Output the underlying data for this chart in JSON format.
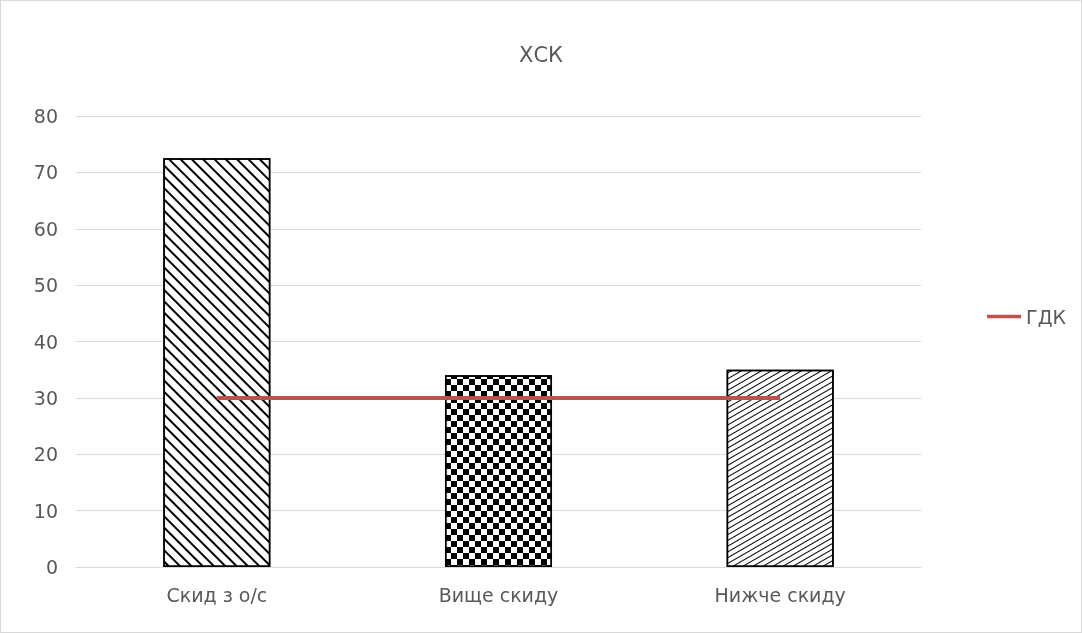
{
  "chart_data": {
    "type": "bar",
    "title": "ХСК",
    "categories": [
      "Скид з о/с",
      "Вище скиду",
      "Нижче скиду"
    ],
    "series": [
      {
        "color": "#ffffff",
        "values": [
          72.5,
          34,
          35
        ]
      },
      {
        "type": "line",
        "name": "ГДК",
        "color": "#c0504d",
        "values": [
          30,
          30,
          30
        ]
      }
    ],
    "ylim": [
      0,
      80
    ],
    "yticks": [
      0,
      10,
      20,
      30,
      40,
      50,
      60,
      70,
      80
    ],
    "grid": "y",
    "legend": "right",
    "marker": "none"
  }
}
